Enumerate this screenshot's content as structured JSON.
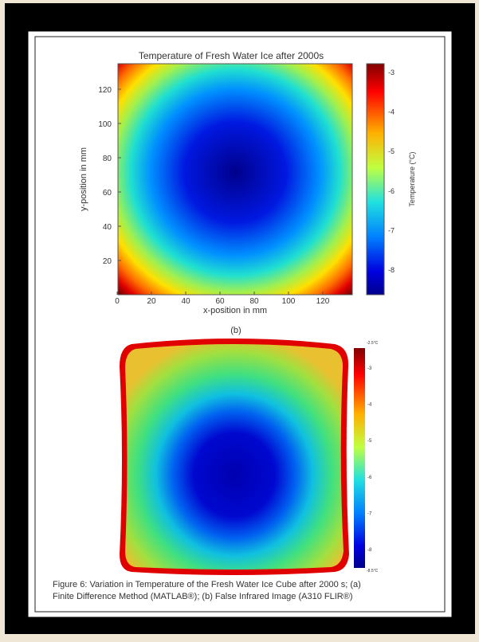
{
  "figure": {
    "plot_a": {
      "title": "Temperature of Fresh Water Ice after 2000s",
      "xlabel": "x-position in mm",
      "ylabel": "y-position in mm",
      "xticks": [
        "0",
        "20",
        "40",
        "60",
        "80",
        "100",
        "120"
      ],
      "yticks": [
        "120",
        "100",
        "80",
        "60",
        "40",
        "20"
      ],
      "colorbar_label": "Temperature (°C)",
      "colorbar_ticks": [
        "-3",
        "-4",
        "-5",
        "-6",
        "-7",
        "-8"
      ]
    },
    "label_b": "(b)",
    "plot_b": {
      "colorbar_top": "-2.5°C",
      "colorbar_ticks": [
        "-3",
        "-4",
        "-5",
        "-6",
        "-7",
        "-8"
      ],
      "colorbar_bottom": "-8.5°C"
    },
    "caption": [
      "Figure 6: Variation in Temperature of the Fresh Water Ice Cube after 2000 s; (a)",
      "Finite Difference Method (MATLAB®); (b) False Infrared Image (A310 FLIR®)"
    ]
  }
}
